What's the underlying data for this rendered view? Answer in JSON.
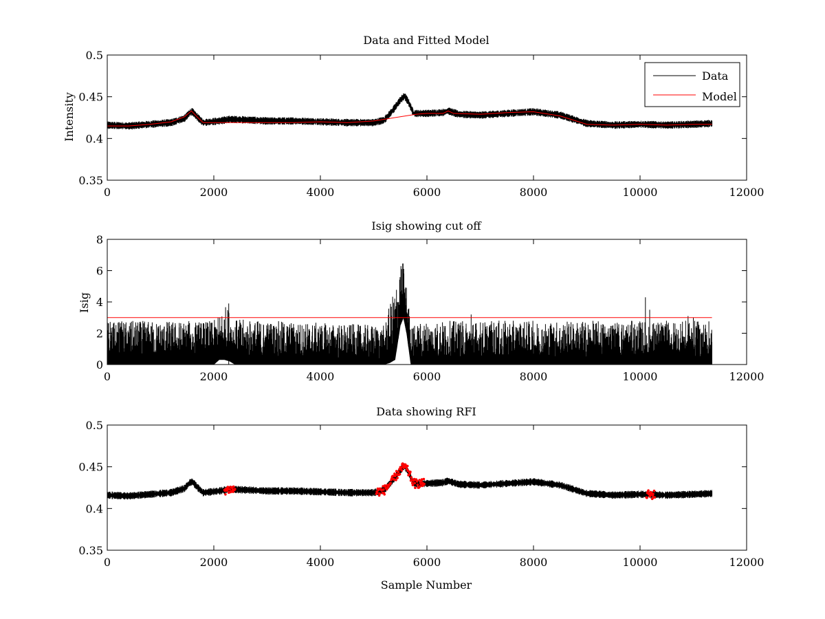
{
  "chart_data": [
    {
      "type": "line",
      "title": "Data and Fitted Model",
      "xlabel": "",
      "ylabel": "Intensity",
      "xlim": [
        0,
        12000
      ],
      "ylim": [
        0.35,
        0.5
      ],
      "xticks": [
        "0",
        "2000",
        "4000",
        "6000",
        "8000",
        "10000",
        "12000"
      ],
      "yticks": [
        "0.35",
        "0.4",
        "0.45",
        "0.5"
      ],
      "legend": {
        "placement": "top-right",
        "entries": [
          "Data",
          "Model"
        ]
      },
      "series": [
        {
          "name": "Data",
          "color": "#000000",
          "style": "noisy-band",
          "x": [
            0,
            400,
            800,
            1200,
            1450,
            1550,
            1600,
            1700,
            1800,
            2100,
            2300,
            2700,
            3000,
            3500,
            4000,
            4500,
            5000,
            5200,
            5350,
            5500,
            5580,
            5650,
            5750,
            6000,
            6300,
            6400,
            6600,
            7000,
            7500,
            8000,
            8500,
            9000,
            9500,
            10000,
            10500,
            11000,
            11350
          ],
          "y_mid": [
            0.416,
            0.415,
            0.417,
            0.419,
            0.424,
            0.431,
            0.432,
            0.425,
            0.419,
            0.421,
            0.423,
            0.422,
            0.421,
            0.421,
            0.42,
            0.419,
            0.419,
            0.422,
            0.433,
            0.446,
            0.451,
            0.444,
            0.43,
            0.43,
            0.431,
            0.433,
            0.429,
            0.428,
            0.43,
            0.432,
            0.428,
            0.418,
            0.416,
            0.417,
            0.416,
            0.417,
            0.418
          ],
          "noise_amplitude": 0.0045
        },
        {
          "name": "Model",
          "color": "#ff0000",
          "x": [
            0,
            400,
            800,
            1200,
            1450,
            1580,
            1700,
            1800,
            2100,
            2500,
            3000,
            3500,
            4000,
            4500,
            5000,
            5500,
            5800,
            6000,
            6300,
            6400,
            6500,
            7000,
            7500,
            8000,
            8500,
            9000,
            9500,
            10000,
            10500,
            11000,
            11350
          ],
          "y": [
            0.415,
            0.415,
            0.417,
            0.42,
            0.426,
            0.433,
            0.425,
            0.419,
            0.419,
            0.419,
            0.419,
            0.419,
            0.42,
            0.419,
            0.421,
            0.426,
            0.429,
            0.43,
            0.43,
            0.433,
            0.43,
            0.429,
            0.431,
            0.432,
            0.427,
            0.417,
            0.416,
            0.417,
            0.416,
            0.417,
            0.417
          ]
        }
      ]
    },
    {
      "type": "line",
      "title": "Isig showing cut off",
      "xlabel": "",
      "ylabel": "Isig",
      "xlim": [
        0,
        12000
      ],
      "ylim": [
        0,
        8
      ],
      "xticks": [
        "0",
        "2000",
        "4000",
        "6000",
        "8000",
        "10000",
        "12000"
      ],
      "yticks": [
        "0",
        "2",
        "4",
        "6",
        "8"
      ],
      "series": [
        {
          "name": "Isig",
          "color": "#000000",
          "style": "noisy-from-zero",
          "x": [
            0,
            2000,
            2100,
            2200,
            2300,
            2400,
            5200,
            5300,
            5400,
            5500,
            5560,
            5620,
            5700,
            6000,
            11350
          ],
          "y_hi": [
            2.8,
            2.8,
            3.2,
            3.8,
            3.6,
            2.9,
            2.5,
            3.8,
            5.0,
            6.3,
            6.7,
            5.0,
            2.5,
            2.8,
            2.8
          ],
          "y_lo": [
            0,
            0,
            0.3,
            0.3,
            0.2,
            0,
            0,
            0.1,
            0.3,
            2.5,
            3.0,
            2.0,
            0,
            0,
            0
          ],
          "spikes": [
            [
              2280,
              3.9
            ],
            [
              6830,
              3.2
            ],
            [
              10100,
              4.3
            ],
            [
              10180,
              3.5
            ],
            [
              10900,
              3.1
            ],
            [
              11000,
              3.0
            ]
          ]
        },
        {
          "name": "Cut off",
          "color": "#ff0000",
          "x": [
            0,
            11350
          ],
          "y": [
            3,
            3
          ]
        }
      ]
    },
    {
      "type": "line",
      "title": "Data showing RFI",
      "xlabel": "Sample Number",
      "ylabel": "",
      "xlim": [
        0,
        12000
      ],
      "ylim": [
        0.35,
        0.5
      ],
      "xticks": [
        "0",
        "2000",
        "4000",
        "6000",
        "8000",
        "10000",
        "12000"
      ],
      "yticks": [
        "0.35",
        "0.4",
        "0.45",
        "0.5"
      ],
      "series": [
        {
          "name": "Data",
          "color": "#000000",
          "style": "noisy-band",
          "x": [
            0,
            400,
            800,
            1200,
            1450,
            1550,
            1600,
            1700,
            1800,
            2100,
            2300,
            2700,
            3000,
            3500,
            4000,
            4500,
            5000,
            5200,
            5350,
            5500,
            5580,
            5650,
            5750,
            6000,
            6300,
            6400,
            6600,
            7000,
            7500,
            8000,
            8500,
            9000,
            9500,
            10000,
            10500,
            11000,
            11350
          ],
          "y_mid": [
            0.416,
            0.415,
            0.417,
            0.419,
            0.424,
            0.431,
            0.432,
            0.425,
            0.419,
            0.421,
            0.423,
            0.422,
            0.421,
            0.421,
            0.42,
            0.419,
            0.419,
            0.422,
            0.433,
            0.446,
            0.451,
            0.444,
            0.43,
            0.43,
            0.431,
            0.433,
            0.429,
            0.428,
            0.43,
            0.432,
            0.428,
            0.418,
            0.416,
            0.417,
            0.416,
            0.417,
            0.418
          ],
          "noise_amplitude": 0.0045
        },
        {
          "name": "RFI",
          "color": "#ff0000",
          "style": "markers",
          "ranges": [
            [
              2200,
              2400
            ],
            [
              5050,
              5950
            ],
            [
              10120,
              10280
            ]
          ]
        }
      ]
    }
  ]
}
